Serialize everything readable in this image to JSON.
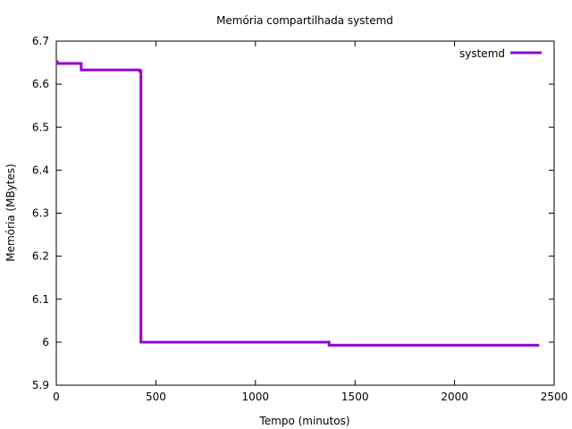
{
  "chart_data": {
    "type": "line",
    "title": "Memória compartilhada systemd",
    "xlabel": "Tempo (minutos)",
    "ylabel": "Memória (MBytes)",
    "xlim": [
      0,
      2500
    ],
    "ylim": [
      5.9,
      6.7
    ],
    "x_ticks": [
      0,
      500,
      1000,
      1500,
      2000,
      2500
    ],
    "y_ticks": [
      5.9,
      6.0,
      6.1,
      6.2,
      6.3,
      6.4,
      6.5,
      6.6,
      6.7
    ],
    "x_tick_labels": [
      "0",
      "500",
      "1000",
      "1500",
      "2000",
      "2500"
    ],
    "y_tick_labels": [
      "5.9",
      "6",
      "6.1",
      "6.2",
      "6.3",
      "6.4",
      "6.5",
      "6.6",
      "6.7"
    ],
    "grid": false,
    "legend_position": "top-right",
    "series": [
      {
        "name": "systemd",
        "color": "#9400d3",
        "step": true,
        "x": [
          0,
          5,
          125,
          420,
          425,
          430,
          1365,
          1370,
          2425
        ],
        "y": [
          6.652,
          6.648,
          6.633,
          6.63,
          6.0,
          6.0,
          6.0,
          5.993,
          5.993
        ]
      }
    ]
  }
}
